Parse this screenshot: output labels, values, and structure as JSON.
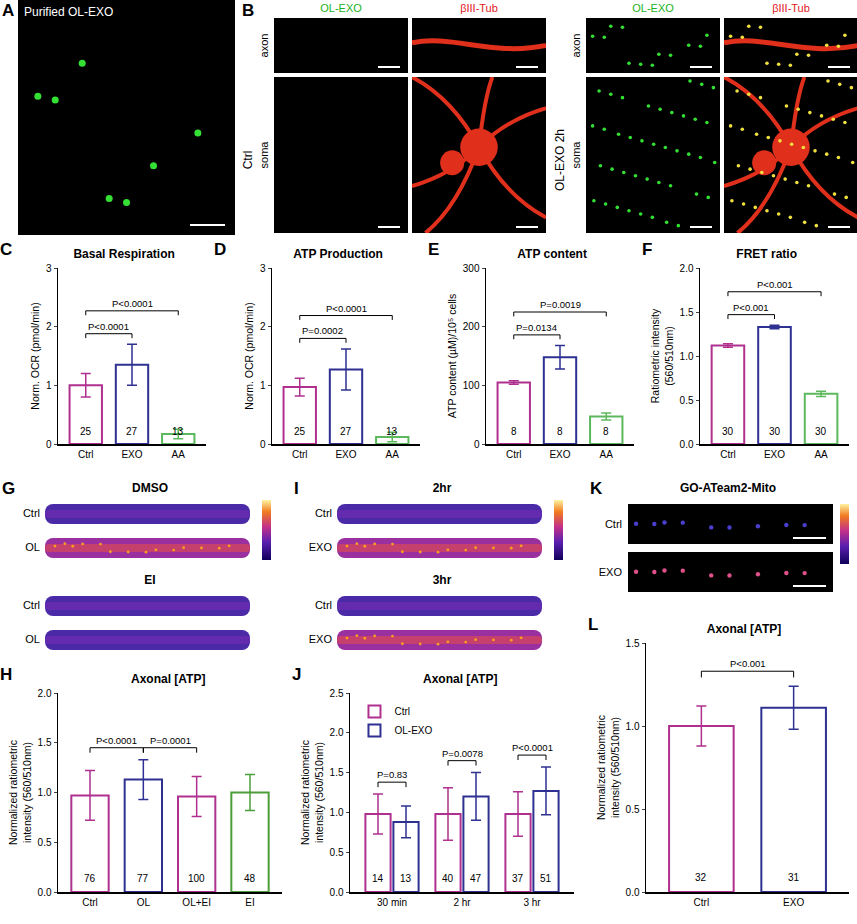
{
  "images": [
    {
      "panel": "A",
      "title": "Purified OL-EXO"
    },
    {
      "panel": "B",
      "groups": [
        {
          "label": "Ctrl",
          "columns": [
            "OL-EXO",
            "βIII-Tub"
          ],
          "rows": [
            "axon",
            "soma"
          ]
        },
        {
          "label": "OL-EXO 2h",
          "columns": [
            "OL-EXO",
            "βIII-Tub"
          ],
          "rows": [
            "axon",
            "soma"
          ]
        }
      ]
    },
    {
      "panel": "G",
      "sections": [
        {
          "title": "DMSO",
          "rows": [
            "Ctrl",
            "OL"
          ]
        },
        {
          "title": "EI",
          "rows": [
            "Ctrl",
            "OL"
          ]
        }
      ]
    },
    {
      "panel": "I",
      "sections": [
        {
          "title": "2hr",
          "rows": [
            "Ctrl",
            "EXO"
          ]
        },
        {
          "title": "3hr",
          "rows": [
            "Ctrl",
            "EXO"
          ]
        }
      ]
    },
    {
      "panel": "K",
      "title": "GO-ATeam2-Mito",
      "rows": [
        "Ctrl",
        "EXO"
      ]
    }
  ],
  "chart_data": [
    {
      "panel": "C",
      "type": "bar",
      "title": "Basal Respiration",
      "y_label": [
        "Norm. OCR (pmol/min)"
      ],
      "categories": [
        "Ctrl",
        "EXO",
        "AA"
      ],
      "values": [
        1.0,
        1.35,
        0.17
      ],
      "errors": [
        0.2,
        0.35,
        0.08
      ],
      "n": [
        25,
        27,
        13
      ],
      "colors": [
        "#b0308f",
        "#2e3192",
        "#5cb85c"
      ],
      "ylim": [
        0,
        3
      ],
      "yticks": [
        0,
        1,
        2,
        3
      ],
      "grid": false,
      "comparisons": [
        {
          "from": 0,
          "to": 1,
          "text": "P<0.0001"
        },
        {
          "from": 0,
          "to": 2,
          "text": "P<0.0001"
        }
      ]
    },
    {
      "panel": "D",
      "type": "bar",
      "title": "ATP Production",
      "y_label": [
        "Norm. OCR (pmol/min)"
      ],
      "categories": [
        "Ctrl",
        "EXO",
        "AA"
      ],
      "values": [
        0.97,
        1.27,
        0.12
      ],
      "errors": [
        0.15,
        0.35,
        0.08
      ],
      "n": [
        25,
        27,
        13
      ],
      "colors": [
        "#b0308f",
        "#2e3192",
        "#5cb85c"
      ],
      "ylim": [
        0,
        3
      ],
      "yticks": [
        0,
        1,
        2,
        3
      ],
      "grid": false,
      "comparisons": [
        {
          "from": 0,
          "to": 1,
          "text": "P=0.0002"
        },
        {
          "from": 0,
          "to": 2,
          "text": "P<0.0001"
        }
      ]
    },
    {
      "panel": "E",
      "type": "bar",
      "title": "ATP content",
      "y_label": [
        "ATP content (µM)/10⁵ cells"
      ],
      "categories": [
        "Ctrl",
        "EXO",
        "AA"
      ],
      "values": [
        105,
        148,
        47
      ],
      "errors": [
        3,
        20,
        6
      ],
      "n": [
        8,
        8,
        8
      ],
      "colors": [
        "#b0308f",
        "#2e3192",
        "#5cb85c"
      ],
      "ylim": [
        0,
        300
      ],
      "yticks": [
        0,
        100,
        200,
        300
      ],
      "grid": false,
      "comparisons": [
        {
          "from": 0,
          "to": 1,
          "text": "P=0.0134"
        },
        {
          "from": 0,
          "to": 2,
          "text": "P=0.0019"
        }
      ]
    },
    {
      "panel": "F",
      "type": "bar",
      "title": "FRET ratio",
      "y_label": [
        "Ratiometric intensity",
        "(560/510nm)"
      ],
      "categories": [
        "Ctrl",
        "EXO",
        "AA"
      ],
      "values": [
        1.12,
        1.33,
        0.57
      ],
      "errors": [
        0.02,
        0.02,
        0.03
      ],
      "n": [
        30,
        30,
        30
      ],
      "colors": [
        "#b0308f",
        "#2e3192",
        "#5cb85c"
      ],
      "ylim": [
        0,
        2
      ],
      "yticks": [
        {
          "value": 0,
          "label": "0.0"
        },
        {
          "value": 0.5,
          "label": "0.5"
        },
        {
          "value": 1,
          "label": "1.0"
        },
        {
          "value": 1.5,
          "label": "1.5"
        },
        {
          "value": 2,
          "label": "2.0"
        }
      ],
      "grid": false,
      "comparisons": [
        {
          "from": 0,
          "to": 1,
          "text": "P<0.001"
        },
        {
          "from": 0,
          "to": 2,
          "text": "P<0.001"
        }
      ]
    },
    {
      "panel": "H",
      "type": "bar",
      "title": "Axonal [ATP]",
      "y_label": [
        "Normalized ratiometric",
        "intensity (560/510nm)"
      ],
      "categories": [
        "Ctrl",
        "OL",
        "OL+EI",
        "EI"
      ],
      "values": [
        0.97,
        1.13,
        0.96,
        1.0
      ],
      "errors": [
        0.25,
        0.2,
        0.2,
        0.18
      ],
      "n": [
        76,
        77,
        100,
        48
      ],
      "colors": [
        "#b0308f",
        "#2e3192",
        "#b0308f",
        "#4d9e3a"
      ],
      "ylim": [
        0,
        2
      ],
      "yticks": [
        {
          "value": 0,
          "label": "0.0"
        },
        {
          "value": 0.5,
          "label": "0.5"
        },
        {
          "value": 1,
          "label": "1.0"
        },
        {
          "value": 1.5,
          "label": "1.5"
        },
        {
          "value": 2,
          "label": "2.0"
        }
      ],
      "grid": false,
      "comparisons": [
        {
          "from": 0,
          "to": 1,
          "text": "P<0.0001"
        },
        {
          "from": 1,
          "to": 2,
          "text": "P=0.0001"
        }
      ]
    },
    {
      "panel": "J",
      "type": "bar",
      "title": "Axonal [ATP]",
      "y_label": [
        "Normalized ratiometric",
        "intensity (560/510nm)"
      ],
      "categories": [
        "30 min",
        "2 hr",
        "3 hr"
      ],
      "legend": "upper left",
      "grid": false,
      "series": [
        {
          "name": "Ctrl",
          "color": "#b0308f",
          "values": [
            0.98,
            0.98,
            0.98
          ],
          "errors": [
            0.25,
            0.33,
            0.28
          ],
          "n": [
            14,
            40,
            37
          ]
        },
        {
          "name": "OL-EXO",
          "color": "#2e3192",
          "values": [
            0.88,
            1.2,
            1.27
          ],
          "errors": [
            0.2,
            0.3,
            0.3
          ],
          "n": [
            13,
            47,
            51
          ]
        }
      ],
      "ylim": [
        0,
        2.5
      ],
      "yticks": [
        {
          "value": 0,
          "label": "0.0"
        },
        {
          "value": 0.5,
          "label": "0.5"
        },
        {
          "value": 1,
          "label": "1.0"
        },
        {
          "value": 1.5,
          "label": "1.5"
        },
        {
          "value": 2,
          "label": "2.0"
        },
        {
          "value": 2.5,
          "label": "2.5"
        }
      ],
      "comparisons": [
        {
          "category": 0,
          "text": "P=0.83"
        },
        {
          "category": 1,
          "text": "P=0.0078"
        },
        {
          "category": 2,
          "text": "P<0.0001"
        }
      ]
    },
    {
      "panel": "L",
      "type": "bar",
      "title": "Axonal [ATP]",
      "y_label": [
        "Normalized ratiometric",
        "intensity (560/510nm)"
      ],
      "categories": [
        "Ctrl",
        "EXO"
      ],
      "values": [
        1.0,
        1.11
      ],
      "errors": [
        0.12,
        0.13
      ],
      "n": [
        32,
        31
      ],
      "colors": [
        "#b0308f",
        "#2e3192"
      ],
      "ylim": [
        0,
        1.5
      ],
      "yticks": [
        {
          "value": 0,
          "label": "0.0"
        },
        {
          "value": 0.5,
          "label": "0.5"
        },
        {
          "value": 1,
          "label": "1.0"
        },
        {
          "value": 1.5,
          "label": "1.5"
        }
      ],
      "grid": false,
      "comparisons": [
        {
          "from": 0,
          "to": 1,
          "text": "P<0.001"
        }
      ]
    }
  ]
}
